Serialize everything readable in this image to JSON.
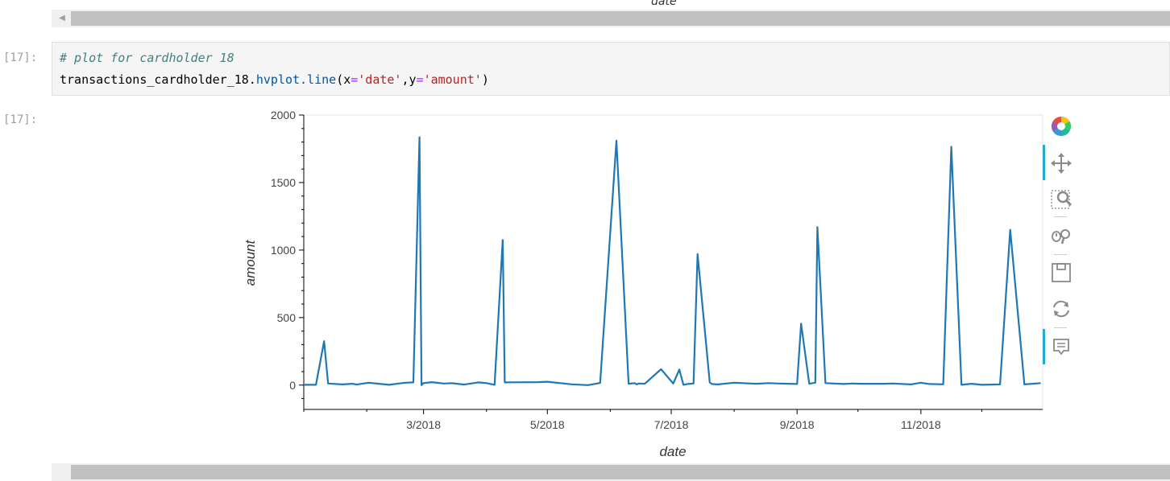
{
  "top_axis_label": "date",
  "cells": [
    {
      "prompt_in": "[17]:",
      "code_comment": "# plot for cardholder 18",
      "code_parts": {
        "obj": "transactions_cardholder_18.",
        "func": "hvplot.line",
        "open": "(x",
        "eq1": "=",
        "arg1": "'date'",
        "comma": ",y",
        "eq2": "=",
        "arg2": "'amount'",
        "close": ")"
      },
      "prompt_out": "[17]:"
    }
  ],
  "toolbar": {
    "items": [
      "bokeh-logo-icon",
      "pan-icon",
      "box-zoom-icon",
      "wheel-zoom-icon",
      "save-icon",
      "reset-icon",
      "hover-icon"
    ]
  },
  "colors": {
    "line": "#1f77b4",
    "accent": "#26a8d9"
  },
  "chart_data": {
    "type": "line",
    "xlabel": "date",
    "ylabel": "amount",
    "ylim": [
      -180,
      2000
    ],
    "xlim": [
      "2018-01-01",
      "2018-12-31"
    ],
    "x_ticks": [
      "3/2018",
      "5/2018",
      "7/2018",
      "9/2018",
      "11/2018"
    ],
    "y_ticks": [
      0,
      500,
      1000,
      1500,
      2000
    ],
    "series": [
      {
        "x": [
          "2018-01-01",
          "2018-01-07",
          "2018-01-11",
          "2018-01-13",
          "2018-01-20",
          "2018-01-25",
          "2018-01-27",
          "2018-02-02",
          "2018-02-07",
          "2018-02-12",
          "2018-02-20",
          "2018-02-24",
          "2018-02-27",
          "2018-02-28",
          "2018-03-01",
          "2018-03-05",
          "2018-03-11",
          "2018-03-15",
          "2018-03-21",
          "2018-03-28",
          "2018-04-01",
          "2018-04-05",
          "2018-04-09",
          "2018-04-10",
          "2018-04-26",
          "2018-05-01",
          "2018-05-13",
          "2018-05-21",
          "2018-05-23",
          "2018-05-27",
          "2018-06-04",
          "2018-06-10",
          "2018-06-13",
          "2018-06-14",
          "2018-06-15",
          "2018-06-18",
          "2018-06-26",
          "2018-07-02",
          "2018-07-05",
          "2018-07-07",
          "2018-07-09",
          "2018-07-12",
          "2018-07-14",
          "2018-07-20",
          "2018-07-21",
          "2018-07-24",
          "2018-08-01",
          "2018-08-12",
          "2018-08-18",
          "2018-08-23",
          "2018-09-01",
          "2018-09-03",
          "2018-09-07",
          "2018-09-10",
          "2018-09-11",
          "2018-09-15",
          "2018-09-24",
          "2018-09-28",
          "2018-10-02",
          "2018-10-14",
          "2018-10-18",
          "2018-10-27",
          "2018-11-01",
          "2018-11-05",
          "2018-11-12",
          "2018-11-16",
          "2018-11-21",
          "2018-11-26",
          "2018-12-01",
          "2018-12-10",
          "2018-12-15",
          "2018-12-22",
          "2018-12-30"
        ],
        "y": [
          2,
          2,
          325,
          12,
          5,
          10,
          4,
          18,
          10,
          2,
          18,
          20,
          1835,
          0,
          15,
          22,
          12,
          14,
          4,
          20,
          15,
          2,
          1075,
          20,
          22,
          25,
          6,
          0,
          5,
          16,
          1810,
          10,
          15,
          5,
          12,
          10,
          118,
          12,
          115,
          2,
          8,
          12,
          970,
          20,
          8,
          5,
          18,
          10,
          15,
          12,
          8,
          455,
          10,
          18,
          1170,
          15,
          8,
          12,
          10,
          10,
          12,
          5,
          18,
          8,
          6,
          1765,
          2,
          10,
          2,
          5,
          1150,
          5,
          15
        ]
      }
    ]
  }
}
